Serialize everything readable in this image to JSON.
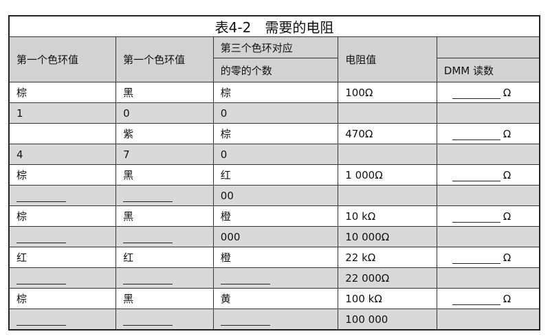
{
  "title": "表4-2　需要的电阻",
  "headers": [
    "第一个色环值",
    "第一个色环值",
    "第三个色环对应",
    "的零的个数",
    "电阻值",
    "DMM 读数"
  ],
  "rows": [
    {
      "c": [
        "棕",
        "黑",
        "棕",
        "100Ω"
      ],
      "blank": [
        false,
        false,
        false
      ],
      "dmm": "Ω",
      "shade": false
    },
    {
      "c": [
        "1",
        "0",
        "0",
        ""
      ],
      "blank": [
        false,
        false,
        false
      ],
      "dmm": "",
      "shade": true
    },
    {
      "c": [
        "",
        "紫",
        "棕",
        "470Ω"
      ],
      "blank": [
        false,
        false,
        false
      ],
      "dmm": "Ω",
      "shade": false
    },
    {
      "c": [
        "4",
        "7",
        "0",
        ""
      ],
      "blank": [
        false,
        false,
        false
      ],
      "dmm": "",
      "shade": true
    },
    {
      "c": [
        "棕",
        "黑",
        "红",
        "1 000Ω"
      ],
      "blank": [
        false,
        false,
        false
      ],
      "dmm": "Ω",
      "shade": false
    },
    {
      "c": [
        "",
        "",
        "00",
        ""
      ],
      "blank": [
        true,
        true,
        false
      ],
      "dmm": "",
      "shade": true
    },
    {
      "c": [
        "棕",
        "黑",
        "橙",
        "10 kΩ"
      ],
      "blank": [
        false,
        false,
        false
      ],
      "dmm": "Ω",
      "shade": false
    },
    {
      "c": [
        "",
        "",
        "000",
        "10 000Ω"
      ],
      "blank": [
        true,
        true,
        false
      ],
      "dmm": "",
      "shade": true
    },
    {
      "c": [
        "红",
        "红",
        "橙",
        "22 kΩ"
      ],
      "blank": [
        false,
        false,
        false
      ],
      "dmm": "Ω",
      "shade": false
    },
    {
      "c": [
        "",
        "",
        "",
        "22 000Ω"
      ],
      "blank": [
        true,
        true,
        true
      ],
      "dmm": "",
      "shade": true
    },
    {
      "c": [
        "棕",
        "黑",
        "黄",
        "100 kΩ"
      ],
      "blank": [
        false,
        false,
        false
      ],
      "dmm": "Ω",
      "shade": false
    },
    {
      "c": [
        "",
        "",
        "",
        "100 000"
      ],
      "blank": [
        true,
        true,
        true
      ],
      "dmm": "",
      "shade": true
    }
  ]
}
